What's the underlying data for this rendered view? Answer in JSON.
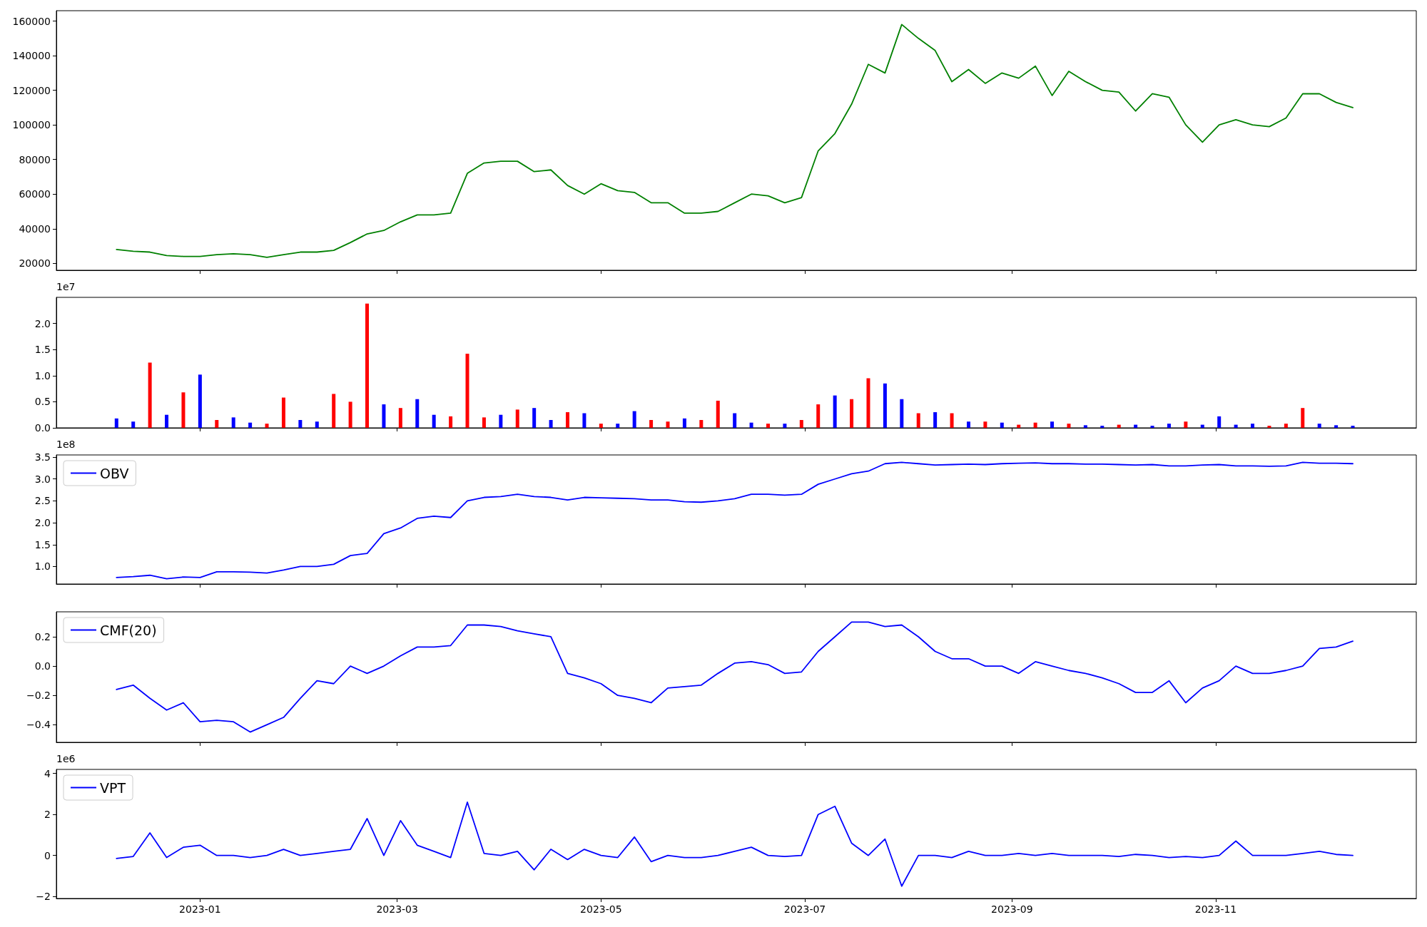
{
  "chart_data": [
    {
      "type": "line",
      "x": [
        "2022-12-07",
        "2022-12-12",
        "2022-12-17",
        "2022-12-22",
        "2022-12-27",
        "2023-01-01",
        "2023-01-06",
        "2023-01-11",
        "2023-01-16",
        "2023-01-21",
        "2023-01-26",
        "2023-01-31",
        "2023-02-05",
        "2023-02-10",
        "2023-02-15",
        "2023-02-20",
        "2023-02-25",
        "2023-03-02",
        "2023-03-07",
        "2023-03-12",
        "2023-03-17",
        "2023-03-22",
        "2023-03-27",
        "2023-04-01",
        "2023-04-06",
        "2023-04-11",
        "2023-04-16",
        "2023-04-21",
        "2023-04-26",
        "2023-05-01",
        "2023-05-06",
        "2023-05-11",
        "2023-05-16",
        "2023-05-21",
        "2023-05-26",
        "2023-05-31",
        "2023-06-05",
        "2023-06-10",
        "2023-06-15",
        "2023-06-20",
        "2023-06-25",
        "2023-06-30",
        "2023-07-05",
        "2023-07-10",
        "2023-07-15",
        "2023-07-20",
        "2023-07-25",
        "2023-07-30",
        "2023-08-04",
        "2023-08-09",
        "2023-08-14",
        "2023-08-19",
        "2023-08-24",
        "2023-08-29",
        "2023-09-03",
        "2023-09-08",
        "2023-09-13",
        "2023-09-18",
        "2023-09-23",
        "2023-09-28",
        "2023-10-03",
        "2023-10-08",
        "2023-10-13",
        "2023-10-18",
        "2023-10-23",
        "2023-10-28",
        "2023-11-02",
        "2023-11-07",
        "2023-11-12",
        "2023-11-17",
        "2023-11-22",
        "2023-11-27",
        "2023-12-02",
        "2023-12-07",
        "2023-12-12"
      ],
      "series": [
        {
          "color": "#008000",
          "values": [
            28000,
            27000,
            26500,
            24500,
            24000,
            24000,
            25000,
            25500,
            25000,
            23500,
            25000,
            26500,
            26500,
            27500,
            32000,
            37000,
            39000,
            44000,
            48000,
            48000,
            49000,
            72000,
            78000,
            79000,
            79000,
            73000,
            74000,
            65000,
            60000,
            66000,
            62000,
            61000,
            55000,
            55000,
            49000,
            49000,
            50000,
            55000,
            60000,
            59000,
            55000,
            58000,
            85000,
            95000,
            112000,
            135000,
            130000,
            158000,
            150000,
            143000,
            125000,
            132000,
            124000,
            130000,
            127000,
            134000,
            117000,
            131000,
            125000,
            120000,
            119000,
            108000,
            118000,
            116000,
            100000,
            90000,
            100000,
            103000,
            100000,
            99000,
            104000,
            118000,
            118000,
            113000,
            110000
          ]
        }
      ],
      "xlim": [
        "2022-11-19",
        "2023-12-31"
      ],
      "xticks": [
        "2023-01",
        "2023-03",
        "2023-05",
        "2023-07",
        "2023-09",
        "2023-11"
      ],
      "ylim": [
        16000,
        166000
      ],
      "yticks": [
        20000,
        40000,
        60000,
        80000,
        100000,
        120000,
        140000,
        160000
      ],
      "tick_labels": "y",
      "grid": false,
      "marker": "none",
      "line_style": "solid"
    },
    {
      "type": "bar",
      "x": [
        "2022-12-07",
        "2022-12-12",
        "2022-12-17",
        "2022-12-22",
        "2022-12-27",
        "2023-01-01",
        "2023-01-06",
        "2023-01-11",
        "2023-01-16",
        "2023-01-21",
        "2023-01-26",
        "2023-01-31",
        "2023-02-05",
        "2023-02-10",
        "2023-02-15",
        "2023-02-20",
        "2023-02-25",
        "2023-03-02",
        "2023-03-07",
        "2023-03-12",
        "2023-03-17",
        "2023-03-22",
        "2023-03-27",
        "2023-04-01",
        "2023-04-06",
        "2023-04-11",
        "2023-04-16",
        "2023-04-21",
        "2023-04-26",
        "2023-05-01",
        "2023-05-06",
        "2023-05-11",
        "2023-05-16",
        "2023-05-21",
        "2023-05-26",
        "2023-05-31",
        "2023-06-05",
        "2023-06-10",
        "2023-06-15",
        "2023-06-20",
        "2023-06-25",
        "2023-06-30",
        "2023-07-05",
        "2023-07-10",
        "2023-07-15",
        "2023-07-20",
        "2023-07-25",
        "2023-07-30",
        "2023-08-04",
        "2023-08-09",
        "2023-08-14",
        "2023-08-19",
        "2023-08-24",
        "2023-08-29",
        "2023-09-03",
        "2023-09-08",
        "2023-09-13",
        "2023-09-18",
        "2023-09-23",
        "2023-09-28",
        "2023-10-03",
        "2023-10-08",
        "2023-10-13",
        "2023-10-18",
        "2023-10-23",
        "2023-10-28",
        "2023-11-02",
        "2023-11-07",
        "2023-11-12",
        "2023-11-17",
        "2023-11-22",
        "2023-11-27",
        "2023-12-02",
        "2023-12-07",
        "2023-12-12"
      ],
      "values": [
        0.18,
        0.12,
        1.25,
        0.25,
        0.68,
        1.02,
        0.15,
        0.2,
        0.1,
        0.08,
        0.58,
        0.15,
        0.12,
        0.65,
        0.5,
        2.38,
        0.45,
        0.38,
        0.55,
        0.25,
        0.22,
        1.42,
        0.2,
        0.25,
        0.35,
        0.38,
        0.15,
        0.3,
        0.28,
        0.08,
        0.08,
        0.32,
        0.15,
        0.12,
        0.18,
        0.15,
        0.52,
        0.28,
        0.1,
        0.08,
        0.08,
        0.15,
        0.45,
        0.62,
        0.55,
        0.95,
        0.85,
        0.55,
        0.28,
        0.3,
        0.28,
        0.12,
        0.12,
        0.1,
        0.06,
        0.1,
        0.12,
        0.08,
        0.05,
        0.04,
        0.06,
        0.06,
        0.04,
        0.08,
        0.12,
        0.06,
        0.22,
        0.06,
        0.08,
        0.04,
        0.08,
        0.38,
        0.08,
        0.05,
        0.04
      ],
      "colors": [
        "#0000ff",
        "#0000ff",
        "#ff0000",
        "#0000ff",
        "#ff0000",
        "#0000ff",
        "#ff0000",
        "#0000ff",
        "#0000ff",
        "#ff0000",
        "#ff0000",
        "#0000ff",
        "#0000ff",
        "#ff0000",
        "#ff0000",
        "#ff0000",
        "#0000ff",
        "#ff0000",
        "#0000ff",
        "#0000ff",
        "#ff0000",
        "#ff0000",
        "#ff0000",
        "#0000ff",
        "#ff0000",
        "#0000ff",
        "#0000ff",
        "#ff0000",
        "#0000ff",
        "#ff0000",
        "#0000ff",
        "#0000ff",
        "#ff0000",
        "#ff0000",
        "#0000ff",
        "#ff0000",
        "#ff0000",
        "#0000ff",
        "#0000ff",
        "#ff0000",
        "#0000ff",
        "#ff0000",
        "#ff0000",
        "#0000ff",
        "#ff0000",
        "#ff0000",
        "#0000ff",
        "#0000ff",
        "#ff0000",
        "#0000ff",
        "#ff0000",
        "#0000ff",
        "#ff0000",
        "#0000ff",
        "#ff0000",
        "#ff0000",
        "#0000ff",
        "#ff0000",
        "#0000ff",
        "#0000ff",
        "#ff0000",
        "#0000ff",
        "#0000ff",
        "#0000ff",
        "#ff0000",
        "#0000ff",
        "#0000ff",
        "#0000ff",
        "#0000ff",
        "#ff0000",
        "#ff0000",
        "#ff0000",
        "#0000ff",
        "#0000ff",
        "#0000ff"
      ],
      "annotations": [
        "1e7"
      ],
      "xlim": [
        "2022-11-19",
        "2023-12-31"
      ],
      "xticks": [
        "2023-01",
        "2023-03",
        "2023-05",
        "2023-07",
        "2023-09",
        "2023-11"
      ],
      "ylim": [
        0,
        2.5
      ],
      "yticks": [
        {
          "value": 0,
          "label": "0.0"
        },
        {
          "value": 0.5,
          "label": "0.5"
        },
        {
          "value": 1,
          "label": "1.0"
        },
        {
          "value": 1.5,
          "label": "1.5"
        },
        {
          "value": 2,
          "label": "2.0"
        }
      ],
      "tick_labels": "y",
      "grid": false
    },
    {
      "type": "line",
      "x": [
        "2022-12-07",
        "2022-12-12",
        "2022-12-17",
        "2022-12-22",
        "2022-12-27",
        "2023-01-01",
        "2023-01-06",
        "2023-01-11",
        "2023-01-16",
        "2023-01-21",
        "2023-01-26",
        "2023-01-31",
        "2023-02-05",
        "2023-02-10",
        "2023-02-15",
        "2023-02-20",
        "2023-02-25",
        "2023-03-02",
        "2023-03-07",
        "2023-03-12",
        "2023-03-17",
        "2023-03-22",
        "2023-03-27",
        "2023-04-01",
        "2023-04-06",
        "2023-04-11",
        "2023-04-16",
        "2023-04-21",
        "2023-04-26",
        "2023-05-01",
        "2023-05-06",
        "2023-05-11",
        "2023-05-16",
        "2023-05-21",
        "2023-05-26",
        "2023-05-31",
        "2023-06-05",
        "2023-06-10",
        "2023-06-15",
        "2023-06-20",
        "2023-06-25",
        "2023-06-30",
        "2023-07-05",
        "2023-07-10",
        "2023-07-15",
        "2023-07-20",
        "2023-07-25",
        "2023-07-30",
        "2023-08-04",
        "2023-08-09",
        "2023-08-14",
        "2023-08-19",
        "2023-08-24",
        "2023-08-29",
        "2023-09-03",
        "2023-09-08",
        "2023-09-13",
        "2023-09-18",
        "2023-09-23",
        "2023-09-28",
        "2023-10-03",
        "2023-10-08",
        "2023-10-13",
        "2023-10-18",
        "2023-10-23",
        "2023-10-28",
        "2023-11-02",
        "2023-11-07",
        "2023-11-12",
        "2023-11-17",
        "2023-11-22",
        "2023-11-27",
        "2023-12-02",
        "2023-12-07",
        "2023-12-12"
      ],
      "series": [
        {
          "name": "OBV",
          "color": "#0000ff",
          "values": [
            0.75,
            0.77,
            0.8,
            0.72,
            0.76,
            0.75,
            0.88,
            0.88,
            0.87,
            0.85,
            0.92,
            1.0,
            1.0,
            1.05,
            1.25,
            1.3,
            1.75,
            1.88,
            2.1,
            2.15,
            2.12,
            2.5,
            2.58,
            2.6,
            2.65,
            2.6,
            2.58,
            2.52,
            2.58,
            2.57,
            2.56,
            2.55,
            2.52,
            2.52,
            2.48,
            2.47,
            2.5,
            2.55,
            2.65,
            2.65,
            2.63,
            2.65,
            2.88,
            3.0,
            3.12,
            3.18,
            3.35,
            3.38,
            3.35,
            3.32,
            3.33,
            3.34,
            3.33,
            3.35,
            3.36,
            3.37,
            3.35,
            3.35,
            3.34,
            3.34,
            3.33,
            3.32,
            3.33,
            3.3,
            3.3,
            3.32,
            3.33,
            3.3,
            3.3,
            3.29,
            3.3,
            3.38,
            3.36,
            3.36,
            3.35
          ]
        }
      ],
      "annotations": [
        "1e8"
      ],
      "legend": "top left",
      "xlim": [
        "2022-11-19",
        "2023-12-31"
      ],
      "xticks": [
        "2023-01",
        "2023-03",
        "2023-05",
        "2023-07",
        "2023-09",
        "2023-11"
      ],
      "ylim": [
        0.6,
        3.55
      ],
      "yticks": [
        {
          "value": 1,
          "label": "1.0"
        },
        {
          "value": 1.5,
          "label": "1.5"
        },
        {
          "value": 2,
          "label": "2.0"
        },
        {
          "value": 2.5,
          "label": "2.5"
        },
        {
          "value": 3,
          "label": "3.0"
        },
        {
          "value": 3.5,
          "label": "3.5"
        }
      ],
      "tick_labels": "y",
      "grid": false,
      "marker": "none",
      "line_style": "solid"
    },
    {
      "type": "line",
      "x": [
        "2022-12-07",
        "2022-12-12",
        "2022-12-17",
        "2022-12-22",
        "2022-12-27",
        "2023-01-01",
        "2023-01-06",
        "2023-01-11",
        "2023-01-16",
        "2023-01-21",
        "2023-01-26",
        "2023-01-31",
        "2023-02-05",
        "2023-02-10",
        "2023-02-15",
        "2023-02-20",
        "2023-02-25",
        "2023-03-02",
        "2023-03-07",
        "2023-03-12",
        "2023-03-17",
        "2023-03-22",
        "2023-03-27",
        "2023-04-01",
        "2023-04-06",
        "2023-04-11",
        "2023-04-16",
        "2023-04-21",
        "2023-04-26",
        "2023-05-01",
        "2023-05-06",
        "2023-05-11",
        "2023-05-16",
        "2023-05-21",
        "2023-05-26",
        "2023-05-31",
        "2023-06-05",
        "2023-06-10",
        "2023-06-15",
        "2023-06-20",
        "2023-06-25",
        "2023-06-30",
        "2023-07-05",
        "2023-07-10",
        "2023-07-15",
        "2023-07-20",
        "2023-07-25",
        "2023-07-30",
        "2023-08-04",
        "2023-08-09",
        "2023-08-14",
        "2023-08-19",
        "2023-08-24",
        "2023-08-29",
        "2023-09-03",
        "2023-09-08",
        "2023-09-13",
        "2023-09-18",
        "2023-09-23",
        "2023-09-28",
        "2023-10-03",
        "2023-10-08",
        "2023-10-13",
        "2023-10-18",
        "2023-10-23",
        "2023-10-28",
        "2023-11-02",
        "2023-11-07",
        "2023-11-12",
        "2023-11-17",
        "2023-11-22",
        "2023-11-27",
        "2023-12-02",
        "2023-12-07",
        "2023-12-12"
      ],
      "series": [
        {
          "name": "CMF(20)",
          "color": "#0000ff",
          "values": [
            -0.16,
            -0.13,
            -0.22,
            -0.3,
            -0.25,
            -0.38,
            -0.37,
            -0.38,
            -0.45,
            -0.4,
            -0.35,
            -0.22,
            -0.1,
            -0.12,
            0.0,
            -0.05,
            0.0,
            0.07,
            0.13,
            0.13,
            0.14,
            0.28,
            0.28,
            0.27,
            0.24,
            0.22,
            0.2,
            -0.05,
            -0.08,
            -0.12,
            -0.2,
            -0.22,
            -0.25,
            -0.15,
            -0.14,
            -0.13,
            -0.05,
            0.02,
            0.03,
            0.01,
            -0.05,
            -0.04,
            0.1,
            0.2,
            0.3,
            0.3,
            0.27,
            0.28,
            0.2,
            0.1,
            0.05,
            0.05,
            0.0,
            0.0,
            -0.05,
            0.03,
            0.0,
            -0.03,
            -0.05,
            -0.08,
            -0.12,
            -0.18,
            -0.18,
            -0.1,
            -0.25,
            -0.15,
            -0.1,
            0.0,
            -0.05,
            -0.05,
            -0.03,
            0.0,
            0.12,
            0.13,
            0.17
          ]
        }
      ],
      "legend": "top left",
      "xlim": [
        "2022-11-19",
        "2023-12-31"
      ],
      "xticks": [
        "2023-01",
        "2023-03",
        "2023-05",
        "2023-07",
        "2023-09",
        "2023-11"
      ],
      "ylim": [
        -0.52,
        0.37
      ],
      "yticks": [
        {
          "value": -0.4,
          "label": "−0.4"
        },
        {
          "value": -0.2,
          "label": "−0.2"
        },
        {
          "value": 0,
          "label": "0.0"
        },
        {
          "value": 0.2,
          "label": "0.2"
        }
      ],
      "tick_labels": "y",
      "grid": false,
      "marker": "none",
      "line_style": "solid"
    },
    {
      "type": "line",
      "x": [
        "2022-12-07",
        "2022-12-12",
        "2022-12-17",
        "2022-12-22",
        "2022-12-27",
        "2023-01-01",
        "2023-01-06",
        "2023-01-11",
        "2023-01-16",
        "2023-01-21",
        "2023-01-26",
        "2023-01-31",
        "2023-02-05",
        "2023-02-10",
        "2023-02-15",
        "2023-02-20",
        "2023-02-25",
        "2023-03-02",
        "2023-03-07",
        "2023-03-12",
        "2023-03-17",
        "2023-03-22",
        "2023-03-27",
        "2023-04-01",
        "2023-04-06",
        "2023-04-11",
        "2023-04-16",
        "2023-04-21",
        "2023-04-26",
        "2023-05-01",
        "2023-05-06",
        "2023-05-11",
        "2023-05-16",
        "2023-05-21",
        "2023-05-26",
        "2023-05-31",
        "2023-06-05",
        "2023-06-10",
        "2023-06-15",
        "2023-06-20",
        "2023-06-25",
        "2023-06-30",
        "2023-07-05",
        "2023-07-10",
        "2023-07-15",
        "2023-07-20",
        "2023-07-25",
        "2023-07-30",
        "2023-08-04",
        "2023-08-09",
        "2023-08-14",
        "2023-08-19",
        "2023-08-24",
        "2023-08-29",
        "2023-09-03",
        "2023-09-08",
        "2023-09-13",
        "2023-09-18",
        "2023-09-23",
        "2023-09-28",
        "2023-10-03",
        "2023-10-08",
        "2023-10-13",
        "2023-10-18",
        "2023-10-23",
        "2023-10-28",
        "2023-11-02",
        "2023-11-07",
        "2023-11-12",
        "2023-11-17",
        "2023-11-22",
        "2023-11-27",
        "2023-12-02",
        "2023-12-07",
        "2023-12-12"
      ],
      "series": [
        {
          "name": "VPT",
          "color": "#0000ff",
          "values": [
            -0.15,
            -0.05,
            1.1,
            -0.1,
            0.4,
            0.5,
            0.0,
            0.0,
            -0.1,
            0.0,
            0.3,
            0.0,
            0.1,
            0.2,
            0.3,
            1.8,
            0.0,
            1.7,
            0.5,
            0.2,
            -0.1,
            2.6,
            0.1,
            0.0,
            0.2,
            -0.7,
            0.3,
            -0.2,
            0.3,
            0.0,
            -0.1,
            0.9,
            -0.3,
            0.0,
            -0.1,
            -0.1,
            0.0,
            0.2,
            0.4,
            0.0,
            -0.05,
            0.0,
            2.0,
            2.4,
            0.6,
            0.0,
            0.8,
            -1.5,
            0.0,
            0.0,
            -0.1,
            0.2,
            0.0,
            0.0,
            0.1,
            0.0,
            0.1,
            0.0,
            0.0,
            0.0,
            -0.05,
            0.05,
            0.0,
            -0.1,
            -0.05,
            -0.1,
            0.0,
            0.7,
            0.0,
            0.0,
            0.0,
            0.1,
            0.2,
            0.05,
            0.0
          ]
        }
      ],
      "annotations": [
        "1e6"
      ],
      "legend": "top left",
      "xlim": [
        "2022-11-19",
        "2023-12-31"
      ],
      "xticks": [
        "2023-01",
        "2023-03",
        "2023-05",
        "2023-07",
        "2023-09",
        "2023-11"
      ],
      "ylim": [
        -2.1,
        4.2
      ],
      "yticks": [
        {
          "value": -2,
          "label": "−2"
        },
        0,
        2,
        4
      ],
      "grid": false,
      "marker": "none",
      "line_style": "solid"
    }
  ]
}
